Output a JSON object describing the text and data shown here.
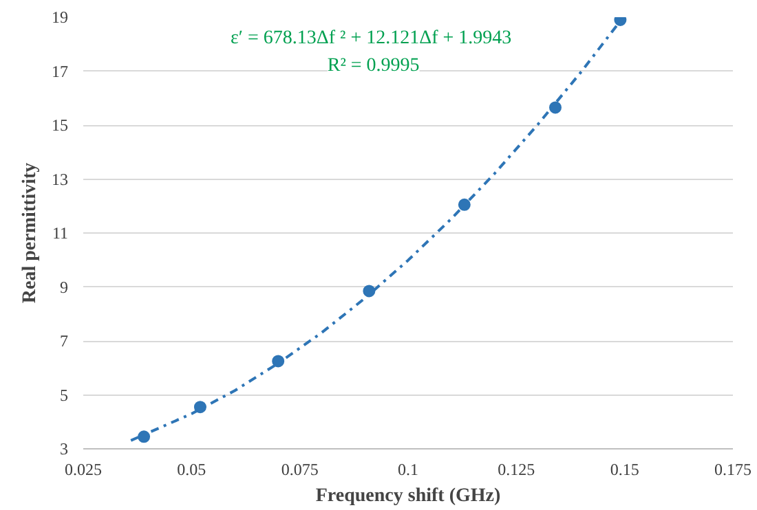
{
  "chart_data": {
    "type": "scatter",
    "xlabel": "Frequency shift (GHz)",
    "ylabel": "Real permittivity",
    "annotations": [
      "ε′ = 678.13Δf ² + 12.121Δf  + 1.9943",
      "R² = 0.9995"
    ],
    "series": [
      {
        "color": "#2e75b6",
        "marker": "circle",
        "x": [
          0.039,
          0.052,
          0.07,
          0.091,
          0.113,
          0.134,
          0.149
        ],
        "values": [
          3.45,
          4.55,
          6.25,
          8.85,
          12.05,
          15.65,
          18.9
        ]
      },
      {
        "type": "line",
        "color": "#2e75b6",
        "line_style": "dashdot",
        "x": [
          0.036,
          0.05,
          0.06,
          0.07,
          0.08,
          0.09,
          0.1,
          0.11,
          0.12,
          0.13,
          0.14,
          0.149
        ],
        "values": [
          3.31,
          4.3,
          5.16,
          6.17,
          7.3,
          8.58,
          9.99,
          11.53,
          13.21,
          15.03,
          16.98,
          18.86
        ]
      }
    ],
    "xlim": [
      0.025,
      0.175
    ],
    "xticks": [
      0.025,
      0.05,
      0.075,
      0.1,
      0.125,
      0.15,
      0.175
    ],
    "ylim": [
      3,
      19
    ],
    "yticks": [
      3,
      5,
      7,
      9,
      11,
      13,
      15,
      17,
      19
    ],
    "grid": "y"
  }
}
